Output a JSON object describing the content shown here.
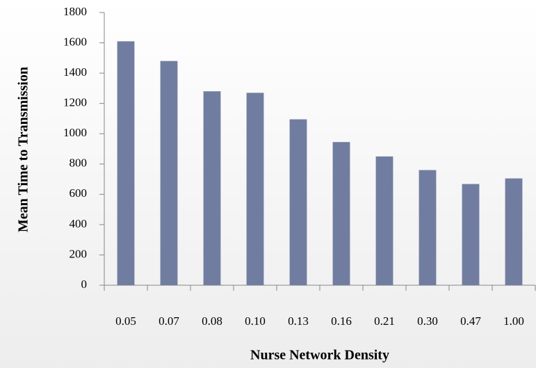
{
  "chart_data": {
    "type": "bar",
    "x_label": "Nurse Network Density",
    "y_label": "Mean Time to Transmission",
    "categories": [
      "0.05",
      "0.07",
      "0.08",
      "0.10",
      "0.13",
      "0.16",
      "0.21",
      "0.30",
      "0.47",
      "1.00"
    ],
    "values": [
      1610,
      1480,
      1280,
      1270,
      1095,
      945,
      850,
      760,
      668,
      705
    ],
    "color": "#717da0",
    "ylim": [
      0,
      1800
    ],
    "yticks": [
      0,
      200,
      400,
      600,
      800,
      1000,
      1200,
      1400,
      1600,
      1800
    ],
    "grid": false
  }
}
